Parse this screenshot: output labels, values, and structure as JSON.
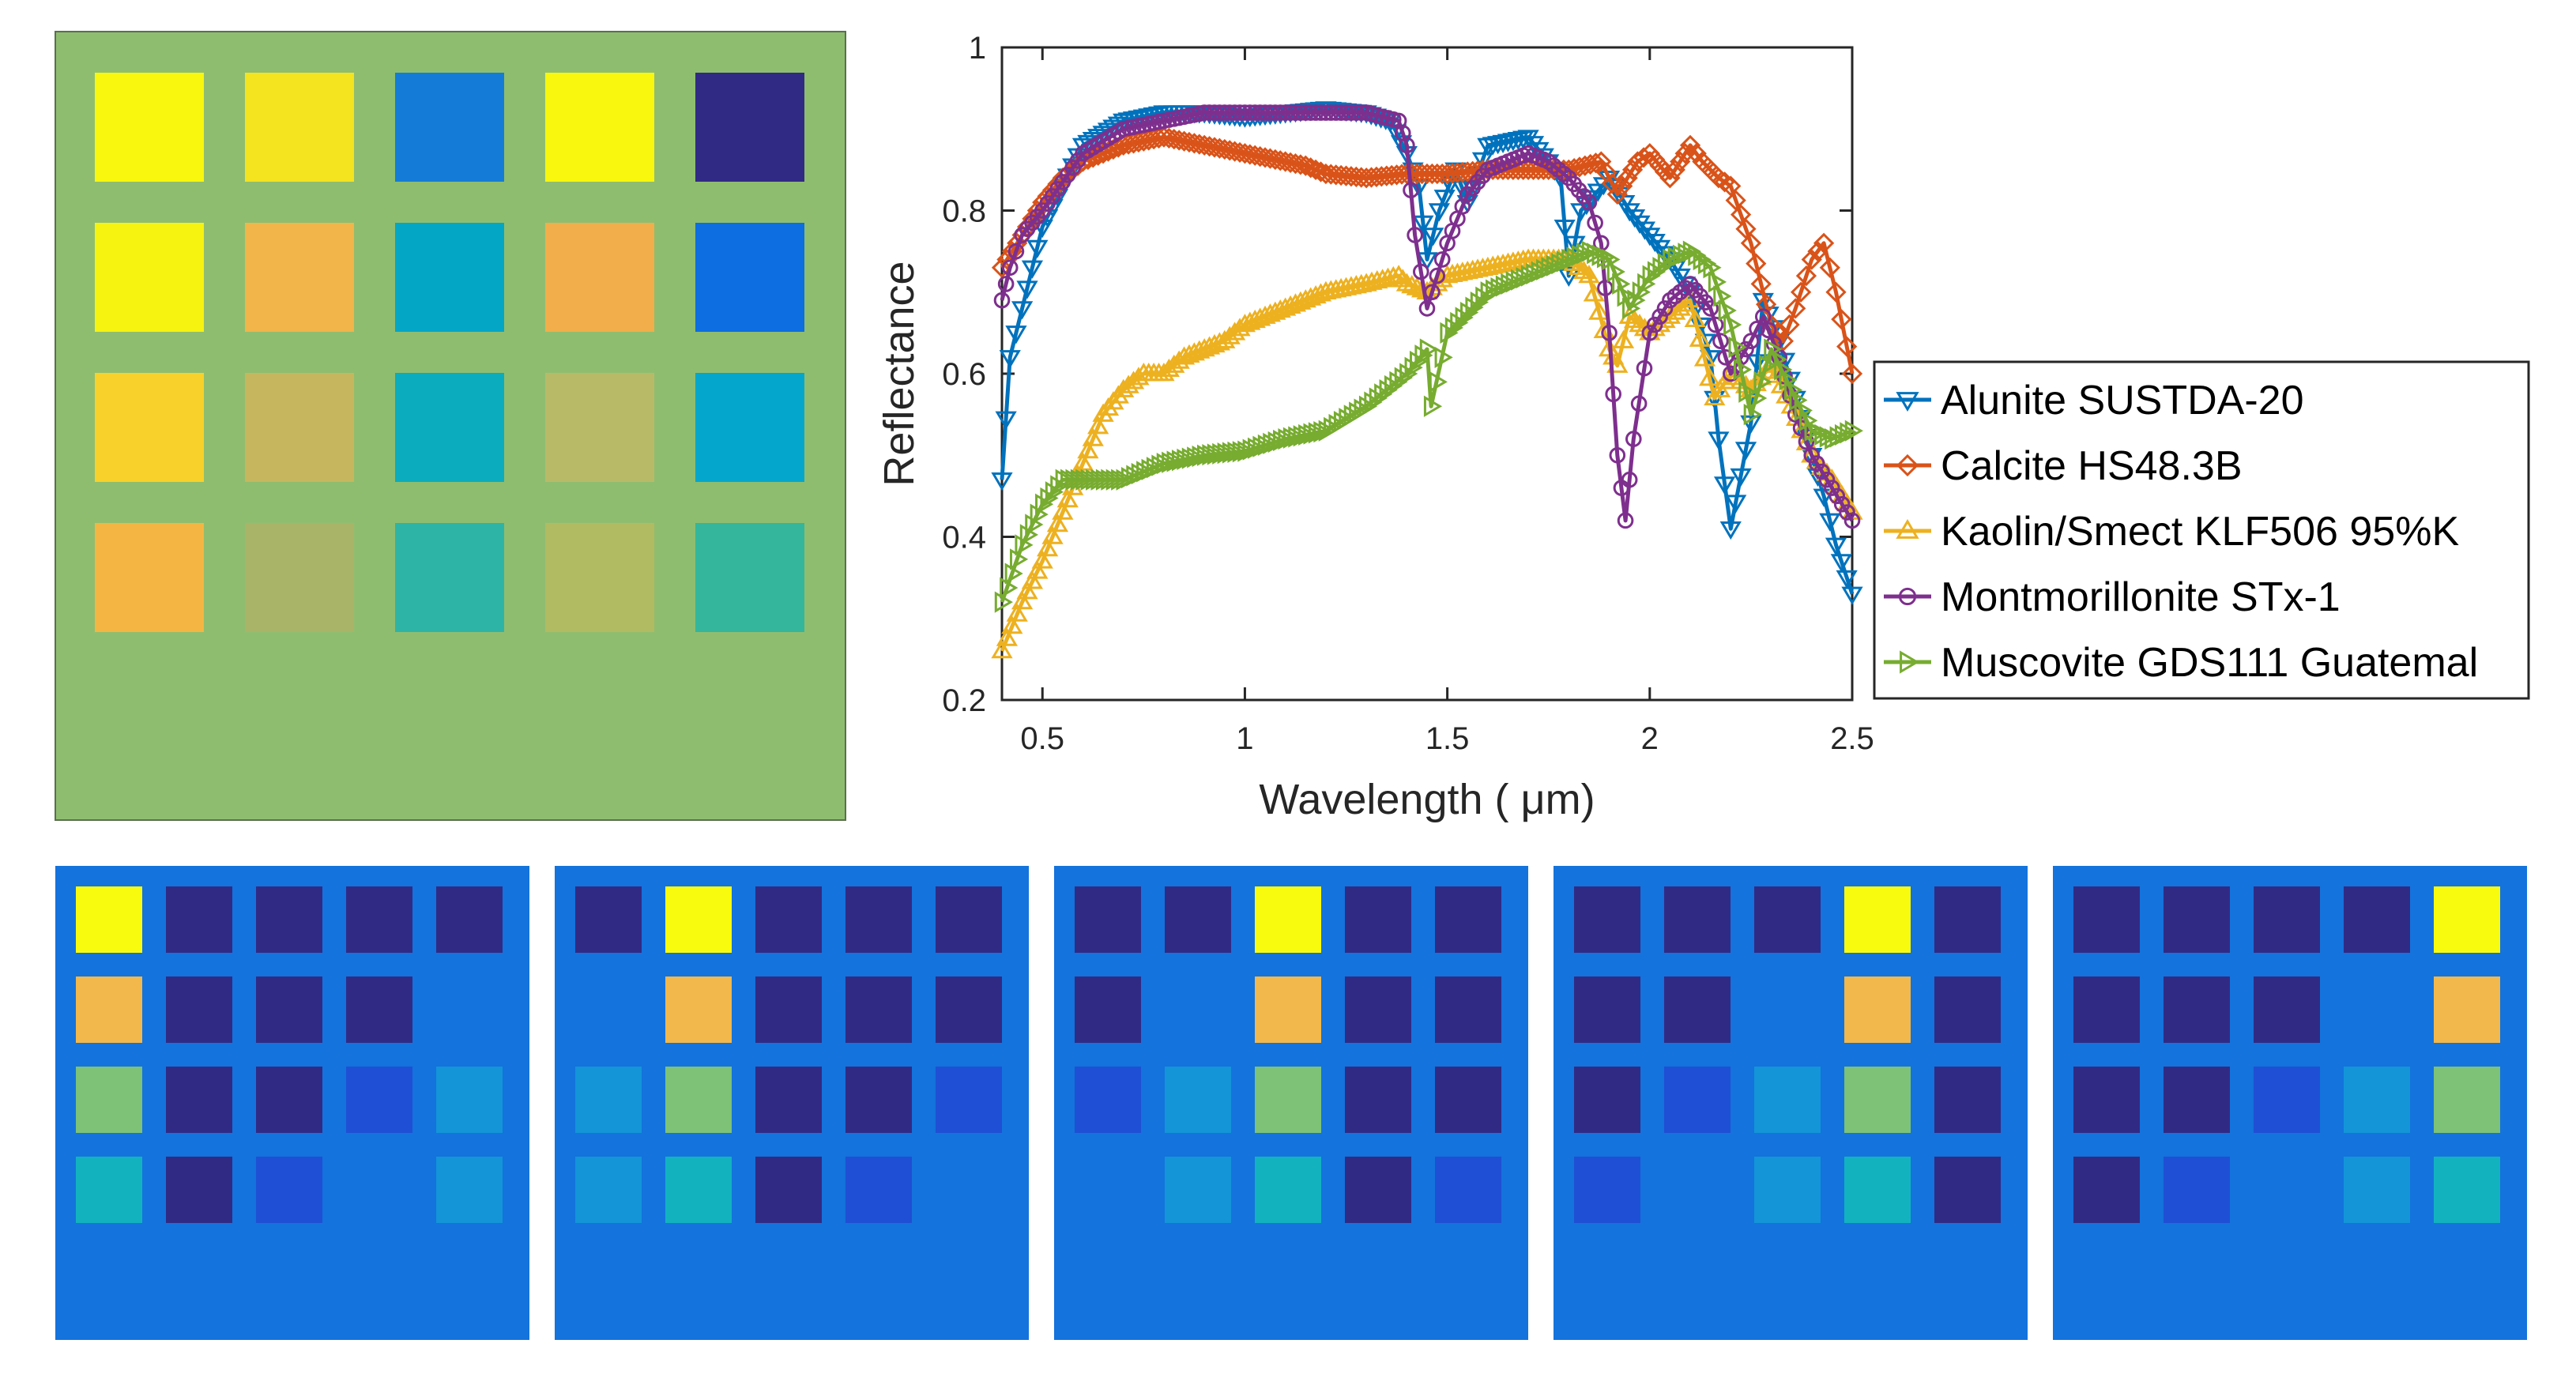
{
  "colors": {
    "panel_green": "#8fbd70",
    "map_blue": "#1473dc",
    "grid_dark": "#312a84",
    "grid_yellow": "#f9fb0e",
    "grid_orange": "#f2b84b",
    "grid_green": "#7dc277",
    "grid_teal": "#15b3be",
    "grid_lightblue": "#1395d8",
    "grid_mediumblue": "#1f4fd4"
  },
  "composite_image": {
    "rows": [
      [
        "#f8f70d",
        "#f4e31f",
        "#147cd6",
        "#f8f70d",
        "#312a84"
      ],
      [
        "#f6f310",
        "#f1b54a",
        "#04a6c6",
        "#f2ae4a",
        "#0c6ee0"
      ],
      [
        "#f8d12a",
        "#c6b75f",
        "#0bacbd",
        "#b9ba68",
        "#04a6cc"
      ],
      [
        "#f5b542",
        "#a9b468",
        "#2eb4a6",
        "#b1bb62",
        "#33b69c"
      ]
    ]
  },
  "abundance_maps": [
    {
      "name": "Alunite SUSTDA-20",
      "rows": [
        [
          "#f9fb0e",
          "#312a84",
          "#312a84",
          "#312a84",
          "#312a84"
        ],
        [
          "#f2b84b",
          "#312a84",
          "#312a84",
          "#312a84",
          null
        ],
        [
          "#7dc277",
          "#312a84",
          "#312a84",
          "#1f4fd4",
          "#1395d8"
        ],
        [
          "#12b3bf",
          "#312a84",
          "#1f4fd4",
          null,
          "#1395d8"
        ]
      ]
    },
    {
      "name": "Calcite HS48.3B",
      "rows": [
        [
          "#312a84",
          "#f9fb0e",
          "#312a84",
          "#312a84",
          "#312a84"
        ],
        [
          null,
          "#f2b84b",
          "#312a84",
          "#312a84",
          "#312a84"
        ],
        [
          "#1395d8",
          "#7dc277",
          "#312a84",
          "#312a84",
          "#1f4fd4"
        ],
        [
          "#1395d8",
          "#12b3bf",
          "#312a84",
          "#1f4fd4",
          null
        ]
      ]
    },
    {
      "name": "Kaolin/Smect KLF506 95%K",
      "rows": [
        [
          "#312a84",
          "#312a84",
          "#f9fb0e",
          "#312a84",
          "#312a84"
        ],
        [
          "#312a84",
          null,
          "#f2b84b",
          "#312a84",
          "#312a84"
        ],
        [
          "#1f4fd4",
          "#1395d8",
          "#7dc277",
          "#312a84",
          "#312a84"
        ],
        [
          null,
          "#1395d8",
          "#12b3bf",
          "#312a84",
          "#1f4fd4"
        ]
      ]
    },
    {
      "name": "Montmorillonite STx-1",
      "rows": [
        [
          "#312a84",
          "#312a84",
          "#312a84",
          "#f9fb0e",
          "#312a84"
        ],
        [
          "#312a84",
          "#312a84",
          null,
          "#f2b84b",
          "#312a84"
        ],
        [
          "#312a84",
          "#1f4fd4",
          "#1395d8",
          "#7dc277",
          "#312a84"
        ],
        [
          "#1f4fd4",
          null,
          "#1395d8",
          "#12b3bf",
          "#312a84"
        ]
      ]
    },
    {
      "name": "Muscovite GDS111 Guatemal",
      "rows": [
        [
          "#312a84",
          "#312a84",
          "#312a84",
          "#312a84",
          "#f9fb0e"
        ],
        [
          "#312a84",
          "#312a84",
          "#312a84",
          null,
          "#f2b84b"
        ],
        [
          "#312a84",
          "#312a84",
          "#1f4fd4",
          "#1395d8",
          "#7dc277"
        ],
        [
          "#312a84",
          "#1f4fd4",
          null,
          "#1395d8",
          "#12b3bf"
        ]
      ]
    }
  ],
  "chart_data": {
    "type": "line",
    "title": "",
    "xlabel": "Wavelength ( μm)",
    "ylabel": "Reflectance",
    "xlim": [
      0.4,
      2.5
    ],
    "ylim": [
      0.2,
      1.0
    ],
    "xticks": [
      0.5,
      1,
      1.5,
      2,
      2.5
    ],
    "xtick_labels": [
      "0.5",
      "1",
      "1.5",
      "2",
      "2.5"
    ],
    "yticks": [
      0.2,
      0.4,
      0.6,
      0.8,
      1.0
    ],
    "ytick_labels": [
      "0.2",
      "0.4",
      "0.6",
      "0.8",
      "1"
    ],
    "grid": false,
    "legend_position": "right",
    "series": [
      {
        "name": "Alunite SUSTDA-20",
        "color": "#0072bd",
        "marker": "triangle-down",
        "points": [
          [
            0.4,
            0.47
          ],
          [
            0.42,
            0.62
          ],
          [
            0.45,
            0.68
          ],
          [
            0.5,
            0.78
          ],
          [
            0.55,
            0.83
          ],
          [
            0.6,
            0.88
          ],
          [
            0.7,
            0.91
          ],
          [
            0.8,
            0.92
          ],
          [
            0.9,
            0.92
          ],
          [
            1.0,
            0.915
          ],
          [
            1.1,
            0.92
          ],
          [
            1.2,
            0.925
          ],
          [
            1.3,
            0.92
          ],
          [
            1.36,
            0.91
          ],
          [
            1.4,
            0.87
          ],
          [
            1.43,
            0.83
          ],
          [
            1.45,
            0.74
          ],
          [
            1.48,
            0.8
          ],
          [
            1.52,
            0.85
          ],
          [
            1.55,
            0.81
          ],
          [
            1.6,
            0.88
          ],
          [
            1.7,
            0.89
          ],
          [
            1.75,
            0.86
          ],
          [
            1.78,
            0.84
          ],
          [
            1.8,
            0.72
          ],
          [
            1.83,
            0.8
          ],
          [
            1.9,
            0.84
          ],
          [
            1.95,
            0.8
          ],
          [
            2.0,
            0.77
          ],
          [
            2.05,
            0.74
          ],
          [
            2.1,
            0.7
          ],
          [
            2.15,
            0.62
          ],
          [
            2.17,
            0.52
          ],
          [
            2.2,
            0.41
          ],
          [
            2.25,
            0.54
          ],
          [
            2.28,
            0.69
          ],
          [
            2.32,
            0.64
          ],
          [
            2.36,
            0.57
          ],
          [
            2.4,
            0.5
          ],
          [
            2.43,
            0.45
          ],
          [
            2.46,
            0.39
          ],
          [
            2.5,
            0.33
          ]
        ]
      },
      {
        "name": "Calcite HS48.3B",
        "color": "#d95319",
        "marker": "diamond",
        "points": [
          [
            0.4,
            0.73
          ],
          [
            0.45,
            0.77
          ],
          [
            0.5,
            0.81
          ],
          [
            0.55,
            0.84
          ],
          [
            0.6,
            0.86
          ],
          [
            0.7,
            0.88
          ],
          [
            0.8,
            0.89
          ],
          [
            0.9,
            0.88
          ],
          [
            1.0,
            0.87
          ],
          [
            1.05,
            0.865
          ],
          [
            1.1,
            0.86
          ],
          [
            1.15,
            0.855
          ],
          [
            1.2,
            0.845
          ],
          [
            1.3,
            0.84
          ],
          [
            1.4,
            0.845
          ],
          [
            1.5,
            0.845
          ],
          [
            1.6,
            0.85
          ],
          [
            1.7,
            0.85
          ],
          [
            1.8,
            0.85
          ],
          [
            1.88,
            0.86
          ],
          [
            1.92,
            0.82
          ],
          [
            1.97,
            0.86
          ],
          [
            2.0,
            0.87
          ],
          [
            2.05,
            0.84
          ],
          [
            2.1,
            0.88
          ],
          [
            2.13,
            0.86
          ],
          [
            2.17,
            0.84
          ],
          [
            2.2,
            0.83
          ],
          [
            2.25,
            0.76
          ],
          [
            2.3,
            0.66
          ],
          [
            2.33,
            0.64
          ],
          [
            2.36,
            0.68
          ],
          [
            2.4,
            0.74
          ],
          [
            2.43,
            0.76
          ],
          [
            2.46,
            0.7
          ],
          [
            2.5,
            0.6
          ]
        ]
      },
      {
        "name": "Kaolin/Smect KLF506 95%K",
        "color": "#edb120",
        "marker": "triangle-up",
        "points": [
          [
            0.4,
            0.26
          ],
          [
            0.45,
            0.32
          ],
          [
            0.5,
            0.37
          ],
          [
            0.55,
            0.43
          ],
          [
            0.6,
            0.49
          ],
          [
            0.65,
            0.55
          ],
          [
            0.7,
            0.58
          ],
          [
            0.75,
            0.6
          ],
          [
            0.8,
            0.6
          ],
          [
            0.85,
            0.62
          ],
          [
            0.9,
            0.63
          ],
          [
            0.95,
            0.64
          ],
          [
            1.0,
            0.66
          ],
          [
            1.1,
            0.68
          ],
          [
            1.2,
            0.7
          ],
          [
            1.3,
            0.71
          ],
          [
            1.38,
            0.72
          ],
          [
            1.4,
            0.71
          ],
          [
            1.45,
            0.7
          ],
          [
            1.5,
            0.72
          ],
          [
            1.6,
            0.73
          ],
          [
            1.7,
            0.74
          ],
          [
            1.8,
            0.74
          ],
          [
            1.85,
            0.72
          ],
          [
            1.9,
            0.63
          ],
          [
            1.92,
            0.61
          ],
          [
            1.95,
            0.67
          ],
          [
            2.0,
            0.65
          ],
          [
            2.05,
            0.67
          ],
          [
            2.1,
            0.69
          ],
          [
            2.16,
            0.57
          ],
          [
            2.2,
            0.6
          ],
          [
            2.25,
            0.58
          ],
          [
            2.3,
            0.61
          ],
          [
            2.35,
            0.56
          ],
          [
            2.4,
            0.5
          ],
          [
            2.45,
            0.47
          ],
          [
            2.5,
            0.43
          ]
        ]
      },
      {
        "name": "Montmorillonite STx-1",
        "color": "#7e2f8e",
        "marker": "circle",
        "points": [
          [
            0.4,
            0.69
          ],
          [
            0.42,
            0.73
          ],
          [
            0.45,
            0.77
          ],
          [
            0.5,
            0.8
          ],
          [
            0.6,
            0.87
          ],
          [
            0.7,
            0.9
          ],
          [
            0.8,
            0.91
          ],
          [
            0.9,
            0.92
          ],
          [
            1.0,
            0.92
          ],
          [
            1.1,
            0.92
          ],
          [
            1.2,
            0.92
          ],
          [
            1.3,
            0.92
          ],
          [
            1.38,
            0.91
          ],
          [
            1.4,
            0.88
          ],
          [
            1.42,
            0.77
          ],
          [
            1.45,
            0.68
          ],
          [
            1.5,
            0.76
          ],
          [
            1.55,
            0.82
          ],
          [
            1.6,
            0.85
          ],
          [
            1.7,
            0.87
          ],
          [
            1.75,
            0.86
          ],
          [
            1.8,
            0.84
          ],
          [
            1.85,
            0.81
          ],
          [
            1.88,
            0.76
          ],
          [
            1.9,
            0.65
          ],
          [
            1.92,
            0.5
          ],
          [
            1.94,
            0.42
          ],
          [
            1.96,
            0.52
          ],
          [
            2.0,
            0.65
          ],
          [
            2.05,
            0.69
          ],
          [
            2.1,
            0.71
          ],
          [
            2.15,
            0.68
          ],
          [
            2.2,
            0.6
          ],
          [
            2.25,
            0.64
          ],
          [
            2.28,
            0.67
          ],
          [
            2.32,
            0.62
          ],
          [
            2.36,
            0.55
          ],
          [
            2.4,
            0.5
          ],
          [
            2.45,
            0.46
          ],
          [
            2.5,
            0.42
          ]
        ]
      },
      {
        "name": "Muscovite GDS111 Guatemal",
        "color": "#77ac30",
        "marker": "triangle-right",
        "points": [
          [
            0.4,
            0.32
          ],
          [
            0.45,
            0.39
          ],
          [
            0.5,
            0.44
          ],
          [
            0.55,
            0.47
          ],
          [
            0.6,
            0.47
          ],
          [
            0.7,
            0.47
          ],
          [
            0.75,
            0.48
          ],
          [
            0.8,
            0.49
          ],
          [
            0.9,
            0.5
          ],
          [
            1.0,
            0.505
          ],
          [
            1.1,
            0.52
          ],
          [
            1.2,
            0.53
          ],
          [
            1.3,
            0.56
          ],
          [
            1.4,
            0.6
          ],
          [
            1.45,
            0.63
          ],
          [
            1.46,
            0.56
          ],
          [
            1.5,
            0.65
          ],
          [
            1.6,
            0.7
          ],
          [
            1.7,
            0.72
          ],
          [
            1.8,
            0.74
          ],
          [
            1.85,
            0.75
          ],
          [
            1.9,
            0.74
          ],
          [
            1.95,
            0.68
          ],
          [
            2.0,
            0.72
          ],
          [
            2.05,
            0.74
          ],
          [
            2.1,
            0.75
          ],
          [
            2.15,
            0.73
          ],
          [
            2.2,
            0.66
          ],
          [
            2.25,
            0.55
          ],
          [
            2.3,
            0.63
          ],
          [
            2.35,
            0.58
          ],
          [
            2.4,
            0.53
          ],
          [
            2.45,
            0.52
          ],
          [
            2.5,
            0.53
          ]
        ]
      }
    ]
  }
}
